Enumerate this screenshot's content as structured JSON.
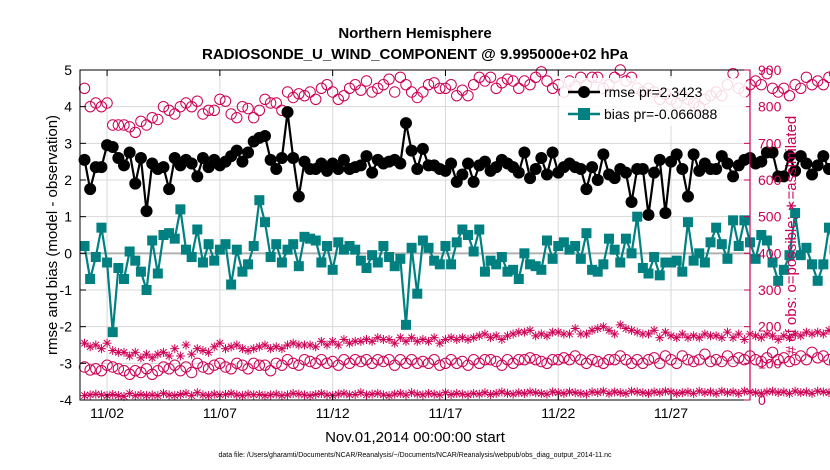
{
  "chart_data": {
    "type": "line",
    "title_line1": "Northern Hemisphere",
    "title_line2": "RADIOSONDE_U_WIND_COMPONENT @ 9.995000e+02 hPa",
    "xlabel": "Nov.01,2014 00:00:00 start",
    "ylabel_left": "rmse and bias (model - observation)",
    "ylabel_right": "# of obs: o=possible; ∗=assimilated",
    "footnote": "data file: /Users/gharamti/Documents/NCAR/Reanalysis/~/Documents/NCAR/Reanalysis/webpub/obs_diag_output_2014-11.nc",
    "xlim": [
      0.8,
      30.5
    ],
    "ylim_left": [
      -4,
      5
    ],
    "ylim_right": [
      0,
      900
    ],
    "x_ticks": [
      2,
      7,
      12,
      17,
      22,
      27
    ],
    "x_tick_labels": [
      "11/02",
      "11/07",
      "11/12",
      "11/17",
      "11/22",
      "11/27"
    ],
    "y_left_ticks": [
      5,
      4,
      3,
      2,
      1,
      0,
      -1,
      -2,
      -3,
      -4
    ],
    "y_left_tick_labels": [
      "5",
      "4",
      "3",
      "2",
      "1",
      "0",
      "-1",
      "-2",
      "-3",
      "-4"
    ],
    "y_right_ticks": [
      900,
      800,
      700,
      600,
      500,
      400,
      300,
      200,
      100,
      0
    ],
    "y_right_tick_labels": [
      "900",
      "800",
      "700",
      "600",
      "500",
      "400",
      "300",
      "200",
      "100",
      "0"
    ],
    "x_start": 1.0,
    "x_step": 0.25,
    "legend": [
      {
        "name": "rmse",
        "label": "rmse pr=2.3423"
      },
      {
        "name": "bias",
        "label": "bias pr=-0.066088"
      }
    ],
    "colors": {
      "rmse": "#000000",
      "bias": "#008080",
      "obs": "#cc0055",
      "zero_line": "#b0b0b0",
      "grid": "#d8d8d8"
    },
    "series": [
      {
        "name": "rmse",
        "values": [
          2.55,
          1.75,
          2.35,
          2.35,
          2.95,
          2.9,
          2.6,
          2.4,
          2.75,
          1.9,
          2.6,
          1.15,
          2.45,
          2.3,
          2.35,
          1.75,
          2.6,
          2.4,
          2.55,
          2.45,
          2.1,
          2.6,
          2.35,
          2.55,
          2.4,
          2.5,
          2.65,
          2.8,
          2.5,
          2.75,
          3.05,
          3.15,
          3.2,
          2.55,
          2.3,
          2.6,
          3.85,
          2.6,
          1.55,
          2.5,
          2.3,
          2.3,
          2.45,
          2.25,
          2.45,
          2.3,
          2.55,
          2.3,
          2.35,
          2.4,
          2.65,
          2.2,
          2.55,
          2.45,
          2.5,
          2.55,
          2.45,
          3.55,
          2.8,
          2.3,
          2.85,
          2.4,
          2.4,
          2.3,
          2.25,
          2.45,
          1.95,
          2.15,
          2.45,
          1.95,
          2.4,
          2.5,
          2.25,
          2.35,
          2.55,
          2.45,
          2.35,
          2.2,
          2.75,
          2.05,
          2.3,
          2.6,
          2.15,
          2.75,
          2.2,
          2.35,
          2.45,
          2.35,
          2.3,
          1.75,
          2.35,
          2.0,
          2.7,
          2.15,
          2.05,
          2.3,
          2.2,
          1.4,
          2.3,
          2.3,
          1.05,
          2.2,
          2.55,
          1.1,
          2.5,
          2.7,
          2.3,
          1.55,
          2.7,
          2.25,
          2.45,
          2.3,
          2.3,
          2.65,
          2.45,
          2.1,
          2.4,
          2.55,
          2.6,
          2.45,
          2.5,
          2.75,
          2.75,
          2.1,
          2.1,
          2.65,
          2.25,
          2.65,
          2.45,
          2.15,
          2.4,
          2.65,
          2.3,
          2.25,
          2.35,
          2.4,
          2.3,
          2.25,
          1.4,
          2.3,
          2.35,
          2.7,
          2.45,
          2.55
        ]
      },
      {
        "name": "bias",
        "values": [
          0.2,
          -0.7,
          -0.1,
          0.7,
          -0.25,
          -2.15,
          -0.4,
          -0.7,
          0.05,
          -0.2,
          -0.5,
          -1.0,
          0.35,
          -0.55,
          0.5,
          0.55,
          0.4,
          1.2,
          0.1,
          -0.1,
          0.65,
          -0.25,
          0.25,
          -0.2,
          0.1,
          0.25,
          -0.85,
          0.1,
          -0.5,
          -0.3,
          0.2,
          1.45,
          0.85,
          -0.1,
          0.25,
          -0.25,
          0.1,
          0.25,
          -0.35,
          0.45,
          0.4,
          0.35,
          -0.25,
          0.2,
          -0.45,
          0.3,
          0.1,
          0.2,
          0.1,
          -0.2,
          -0.4,
          -0.05,
          -0.25,
          0.2,
          -0.1,
          -0.35,
          -0.15,
          -1.95,
          0.15,
          -1.1,
          0.35,
          0.15,
          -0.2,
          -0.3,
          0.2,
          -0.3,
          0.3,
          0.65,
          0.5,
          0.05,
          0.65,
          -0.5,
          -0.2,
          -0.3,
          -0.1,
          -0.5,
          -0.45,
          -0.7,
          0.0,
          -0.3,
          -0.35,
          -0.45,
          0.35,
          -0.15,
          0.2,
          0.3,
          0.1,
          0.2,
          -0.15,
          0.55,
          -0.45,
          -0.5,
          -0.3,
          0.4,
          0.1,
          -0.25,
          0.4,
          0.0,
          1.0,
          -0.4,
          -0.55,
          -0.1,
          -0.6,
          -0.25,
          -0.25,
          -0.2,
          -0.5,
          0.85,
          -0.2,
          0.0,
          -0.25,
          0.3,
          0.7,
          0.25,
          -0.15,
          0.9,
          0.2,
          0.9,
          0.3,
          -0.15,
          0.5,
          0.35,
          -0.25,
          -0.75,
          -0.45,
          -0.05,
          1.1,
          -0.05,
          0.15,
          -0.3,
          -0.75,
          -0.3,
          0.7,
          0.1,
          0.2,
          0.15,
          -0.15,
          0.2,
          0.1,
          0.3,
          0.1,
          0.4,
          -0.85,
          -0.85
        ]
      },
      {
        "name": "obs_possible",
        "values": [
          850,
          800,
          810,
          800,
          810,
          750,
          750,
          750,
          745,
          730,
          760,
          750,
          770,
          765,
          800,
          790,
          780,
          800,
          810,
          800,
          815,
          780,
          790,
          790,
          820,
          815,
          780,
          770,
          800,
          795,
          770,
          790,
          820,
          810,
          810,
          790,
          840,
          825,
          835,
          830,
          840,
          820,
          850,
          860,
          840,
          820,
          830,
          850,
          860,
          845,
          870,
          840,
          850,
          860,
          875,
          840,
          880,
          860,
          840,
          825,
          840,
          860,
          865,
          850,
          850,
          860,
          830,
          845,
          830,
          860,
          880,
          870,
          880,
          850,
          865,
          875,
          870,
          850,
          870,
          860,
          880,
          895,
          870,
          850,
          860,
          840,
          870,
          855,
          880,
          860,
          880,
          880,
          850,
          860,
          880,
          900,
          870,
          880,
          850,
          840,
          850,
          840,
          820,
          835,
          820,
          810,
          830,
          820,
          810,
          800,
          820,
          830,
          840,
          830,
          860,
          890,
          850,
          840,
          860,
          870,
          860,
          890,
          850,
          840,
          850,
          830,
          860,
          850,
          880,
          860,
          870,
          860,
          880,
          890,
          860,
          830,
          850,
          870,
          840,
          870,
          860,
          820
        ]
      },
      {
        "name": "obs_possible_low",
        "values": [
          90,
          82,
          85,
          80,
          95,
          90,
          85,
          80,
          70,
          80,
          75,
          85,
          70,
          80,
          90,
          85,
          95,
          80,
          90,
          75,
          100,
          90,
          85,
          95,
          100,
          90,
          85,
          100,
          95,
          85,
          100,
          95,
          95,
          80,
          100,
          95,
          110,
          100,
          95,
          110,
          105,
          100,
          110,
          100,
          105,
          95,
          110,
          100,
          110,
          105,
          110,
          100,
          110,
          105,
          110,
          95,
          110,
          100,
          110,
          100,
          105,
          100,
          110,
          95,
          100,
          110,
          100,
          105,
          95,
          110,
          100,
          110,
          110,
          105,
          95,
          110,
          100,
          110,
          110,
          115,
          110,
          105,
          100,
          110,
          110,
          115,
          110,
          120,
          110,
          100,
          110,
          105,
          100,
          110,
          110,
          120,
          110,
          100,
          110,
          100,
          110,
          115,
          100,
          120,
          110,
          100,
          120,
          110,
          105,
          110,
          125,
          105,
          110,
          105,
          120,
          105,
          115,
          110,
          120,
          110,
          105,
          115,
          130,
          110,
          115,
          105,
          110,
          120,
          110,
          130,
          115,
          120,
          110,
          105,
          110,
          100,
          120,
          105,
          115,
          130,
          110,
          90
        ]
      },
      {
        "name": "obs_assimilated",
        "values": [
          155,
          145,
          150,
          140,
          155,
          135,
          130,
          130,
          120,
          130,
          115,
          125,
          115,
          125,
          130,
          120,
          140,
          120,
          150,
          125,
          140,
          135,
          130,
          145,
          155,
          140,
          145,
          150,
          140,
          135,
          140,
          145,
          150,
          140,
          145,
          140,
          150,
          155,
          150,
          150,
          150,
          145,
          160,
          150,
          160,
          150,
          165,
          155,
          160,
          160,
          165,
          160,
          170,
          165,
          165,
          155,
          170,
          160,
          170,
          160,
          165,
          160,
          170,
          155,
          165,
          170,
          165,
          170,
          165,
          170,
          175,
          180,
          170,
          175,
          165,
          175,
          180,
          185,
          185,
          190,
          175,
          180,
          175,
          185,
          185,
          180,
          180,
          195,
          180,
          180,
          190,
          195,
          200,
          190,
          180,
          205,
          195,
          190,
          185,
          180,
          180,
          190,
          170,
          185,
          175,
          170,
          180,
          170,
          175,
          170,
          180,
          175,
          175,
          170,
          185,
          170,
          180,
          165,
          180,
          175,
          170,
          180,
          175,
          165,
          175,
          170,
          180,
          175,
          185,
          180,
          185,
          180,
          190,
          185,
          190,
          175,
          185,
          190,
          190,
          195,
          175,
          150
        ]
      },
      {
        "name": "obs_assimilated_low",
        "values": [
          12,
          14,
          16,
          14,
          12,
          15,
          12,
          10,
          18,
          12,
          15,
          12,
          14,
          12,
          18,
          14,
          12,
          15,
          18,
          12,
          20,
          14,
          12,
          16,
          14,
          15,
          18,
          14,
          12,
          16,
          14,
          15,
          12,
          14,
          16,
          12,
          14,
          18,
          16,
          14,
          12,
          15,
          18,
          14,
          12,
          16,
          18,
          14,
          15,
          20,
          14,
          16,
          18,
          14,
          12,
          16,
          18,
          14,
          20,
          16,
          14,
          18,
          16,
          14,
          20,
          15,
          18,
          16,
          14,
          18,
          16,
          20,
          15,
          18,
          22,
          18,
          16,
          20,
          18,
          22,
          20,
          18,
          16,
          22,
          20,
          18,
          22,
          20,
          18,
          16,
          22,
          20,
          24,
          18,
          22,
          20,
          18,
          24,
          22,
          20,
          18,
          22,
          20,
          24,
          22,
          18,
          20,
          22,
          18,
          24,
          20,
          22,
          18,
          24,
          20,
          22,
          18,
          24,
          22,
          20,
          18,
          22,
          24,
          20,
          22,
          18,
          24,
          20,
          22,
          18,
          24,
          22,
          20,
          24,
          22,
          18,
          20,
          22,
          24,
          20,
          22,
          5
        ]
      }
    ]
  }
}
